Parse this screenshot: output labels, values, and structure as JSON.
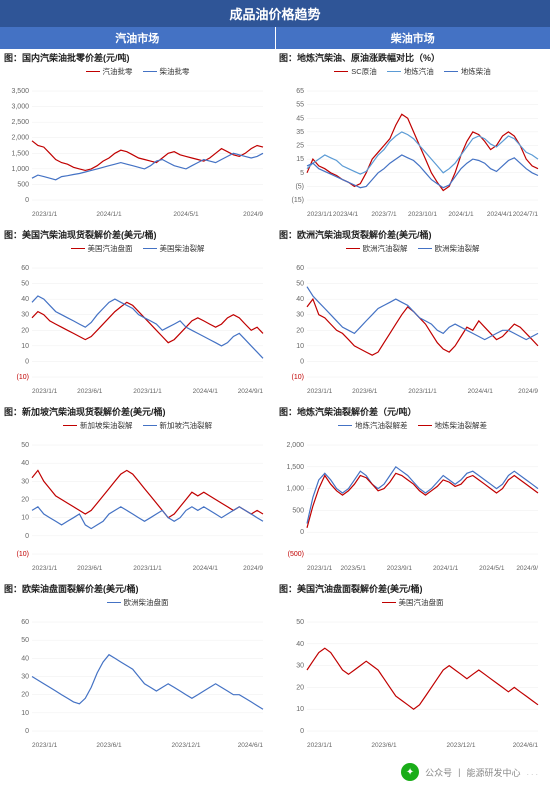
{
  "main_title": "成品油价格趋势",
  "sub_headers": [
    "汽油市场",
    "柴油市场"
  ],
  "colors": {
    "red": "#c00000",
    "blue": "#4472c4",
    "lightblue": "#5b9bd5",
    "grid": "#eeeeee",
    "axis": "#cccccc",
    "bg": "#ffffff"
  },
  "footer": {
    "source_label": "公众号",
    "source_name": "能源研发中心",
    "sep": "|",
    "dots": "..."
  },
  "charts": [
    {
      "id": "c0",
      "title": "图：国内汽柴油批零价差(元/吨)",
      "ylim": [
        0,
        3500
      ],
      "ytick_step": 500,
      "x_labels": [
        "2023/1/1",
        "2024/1/1",
        "2024/5/1",
        "2024/9"
      ],
      "series": [
        {
          "name": "汽油批零",
          "color": "#c00000",
          "data": [
            1900,
            1750,
            1700,
            1500,
            1300,
            1200,
            1150,
            1050,
            1000,
            950,
            1000,
            1100,
            1250,
            1350,
            1500,
            1600,
            1550,
            1450,
            1350,
            1300,
            1250,
            1200,
            1350,
            1500,
            1550,
            1450,
            1400,
            1350,
            1300,
            1250,
            1350,
            1500,
            1650,
            1550,
            1450,
            1400,
            1500,
            1650,
            1750,
            1700
          ]
        },
        {
          "name": "柴油批零",
          "color": "#4472c4",
          "data": [
            700,
            800,
            750,
            700,
            650,
            750,
            780,
            820,
            850,
            900,
            950,
            1000,
            1050,
            1100,
            1150,
            1200,
            1150,
            1100,
            1050,
            1000,
            1100,
            1250,
            1300,
            1200,
            1100,
            1050,
            1000,
            1100,
            1200,
            1300,
            1250,
            1200,
            1300,
            1400,
            1500,
            1450,
            1400,
            1350,
            1400,
            1500
          ]
        }
      ]
    },
    {
      "id": "c1",
      "title": "图：地炼汽柴油、原油涨跌幅对比（%）",
      "ylim": [
        -15,
        65
      ],
      "ytick_step": 10,
      "x_labels": [
        "2023/1/1",
        "2023/4/1",
        "2023/7/1",
        "2023/10/1",
        "2024/1/1",
        "2024/4/1",
        "2024/7/1"
      ],
      "series": [
        {
          "name": "SC原油",
          "color": "#c00000",
          "data": [
            5,
            15,
            10,
            8,
            5,
            3,
            0,
            -2,
            -5,
            -3,
            5,
            15,
            20,
            25,
            30,
            40,
            48,
            45,
            35,
            25,
            15,
            5,
            -2,
            -8,
            -5,
            5,
            18,
            28,
            35,
            33,
            28,
            22,
            25,
            32,
            35,
            32,
            25,
            15,
            10,
            8
          ]
        },
        {
          "name": "地炼汽油",
          "color": "#5b9bd5",
          "data": [
            8,
            12,
            15,
            18,
            16,
            14,
            10,
            8,
            6,
            4,
            6,
            12,
            18,
            22,
            28,
            32,
            35,
            33,
            30,
            25,
            20,
            15,
            10,
            5,
            8,
            12,
            18,
            24,
            30,
            32,
            30,
            26,
            24,
            28,
            32,
            30,
            25,
            20,
            18,
            15
          ]
        },
        {
          "name": "地炼柴油",
          "color": "#4472c4",
          "data": [
            10,
            12,
            8,
            6,
            4,
            2,
            0,
            -2,
            -4,
            -6,
            -5,
            0,
            5,
            8,
            12,
            15,
            18,
            16,
            14,
            10,
            5,
            0,
            -3,
            -6,
            -4,
            2,
            8,
            12,
            15,
            14,
            12,
            8,
            6,
            10,
            14,
            16,
            12,
            8,
            5,
            3
          ]
        }
      ]
    },
    {
      "id": "c2",
      "title": "图：美国汽柴油现货裂解价差(美元/桶)",
      "ylim": [
        -10,
        60
      ],
      "ytick_step": 10,
      "neg_tick_color": "#c00000",
      "x_labels": [
        "2023/1/1",
        "2023/6/1",
        "2023/11/1",
        "2024/4/1",
        "2024/9/1"
      ],
      "series": [
        {
          "name": "美国汽油盘面",
          "color": "#c00000",
          "data": [
            28,
            32,
            30,
            26,
            24,
            22,
            20,
            18,
            16,
            14,
            16,
            20,
            24,
            28,
            32,
            35,
            38,
            36,
            32,
            28,
            24,
            20,
            16,
            12,
            14,
            18,
            22,
            26,
            28,
            26,
            24,
            22,
            24,
            28,
            30,
            28,
            24,
            20,
            22,
            18
          ]
        },
        {
          "name": "美国柴油裂解",
          "color": "#4472c4",
          "data": [
            38,
            42,
            40,
            36,
            32,
            30,
            28,
            26,
            24,
            22,
            25,
            30,
            34,
            38,
            40,
            38,
            36,
            34,
            30,
            28,
            26,
            24,
            20,
            22,
            24,
            26,
            22,
            20,
            18,
            16,
            14,
            12,
            10,
            12,
            16,
            18,
            14,
            10,
            6,
            2
          ]
        }
      ]
    },
    {
      "id": "c3",
      "title": "图：欧洲汽柴油现货裂解价差(美元/桶)",
      "ylim": [
        -10,
        60
      ],
      "ytick_step": 10,
      "neg_tick_color": "#c00000",
      "x_labels": [
        "2023/1/1",
        "2023/6/1",
        "2023/11/1",
        "2024/4/1",
        "2024/9"
      ],
      "series": [
        {
          "name": "欧洲汽油裂解",
          "color": "#c00000",
          "data": [
            35,
            40,
            30,
            28,
            24,
            20,
            18,
            14,
            10,
            8,
            6,
            4,
            6,
            12,
            18,
            24,
            30,
            35,
            32,
            28,
            24,
            18,
            12,
            8,
            6,
            10,
            16,
            22,
            20,
            26,
            22,
            18,
            14,
            16,
            20,
            24,
            22,
            18,
            14,
            10
          ]
        },
        {
          "name": "欧洲柴油裂解",
          "color": "#4472c4",
          "data": [
            48,
            42,
            38,
            34,
            30,
            26,
            22,
            20,
            18,
            22,
            26,
            30,
            34,
            36,
            38,
            40,
            38,
            36,
            32,
            28,
            26,
            24,
            20,
            18,
            22,
            24,
            22,
            20,
            18,
            16,
            14,
            16,
            18,
            20,
            20,
            18,
            16,
            14,
            16,
            18
          ]
        }
      ]
    },
    {
      "id": "c4",
      "title": "图：新加坡汽柴油现货裂解价差(美元/桶)",
      "ylim": [
        -10,
        50
      ],
      "ytick_step": 10,
      "neg_tick_color": "#c00000",
      "x_labels": [
        "2023/1/1",
        "2023/6/1",
        "2023/11/1",
        "2024/4/1",
        "2024/9"
      ],
      "series": [
        {
          "name": "新加坡柴油裂解",
          "color": "#c00000",
          "data": [
            32,
            36,
            30,
            26,
            22,
            20,
            18,
            16,
            14,
            12,
            14,
            18,
            22,
            26,
            30,
            34,
            36,
            34,
            30,
            26,
            22,
            18,
            14,
            10,
            12,
            16,
            20,
            24,
            22,
            24,
            22,
            20,
            18,
            16,
            14,
            16,
            14,
            12,
            14,
            12
          ]
        },
        {
          "name": "新加坡汽油裂解",
          "color": "#4472c4",
          "data": [
            14,
            16,
            12,
            10,
            8,
            6,
            8,
            10,
            12,
            6,
            4,
            6,
            8,
            12,
            14,
            16,
            14,
            12,
            10,
            8,
            10,
            12,
            14,
            10,
            8,
            10,
            14,
            16,
            14,
            16,
            14,
            12,
            10,
            12,
            14,
            16,
            14,
            12,
            10,
            8
          ]
        }
      ]
    },
    {
      "id": "c5",
      "title": "图：地炼汽柴油裂解价差（元/吨）",
      "ylim": [
        -500,
        2000
      ],
      "ytick_step": 500,
      "neg_tick_color": "#c00000",
      "x_labels": [
        "2023/1/1",
        "2023/5/1",
        "2023/9/1",
        "2024/1/1",
        "2024/5/1",
        "2024/9/"
      ],
      "series": [
        {
          "name": "地炼汽油裂解差",
          "color": "#4472c4",
          "data": [
            200,
            800,
            1200,
            1350,
            1200,
            1000,
            900,
            1000,
            1200,
            1400,
            1300,
            1100,
            1000,
            1100,
            1300,
            1500,
            1400,
            1300,
            1150,
            1000,
            900,
            1000,
            1150,
            1300,
            1200,
            1100,
            1200,
            1350,
            1400,
            1300,
            1200,
            1100,
            1000,
            1100,
            1300,
            1400,
            1300,
            1200,
            1100,
            1000
          ]
        },
        {
          "name": "地炼柴油裂解差",
          "color": "#c00000",
          "data": [
            100,
            600,
            1000,
            1300,
            1100,
            950,
            850,
            950,
            1100,
            1300,
            1250,
            1100,
            950,
            1000,
            1150,
            1350,
            1300,
            1200,
            1100,
            950,
            850,
            950,
            1050,
            1200,
            1150,
            1050,
            1100,
            1250,
            1300,
            1200,
            1100,
            1000,
            900,
            1000,
            1200,
            1300,
            1200,
            1100,
            1000,
            900
          ]
        }
      ]
    },
    {
      "id": "c6",
      "title": "图：欧柴油盘面裂解价差(美元/桶)",
      "ylim": [
        0,
        60
      ],
      "ytick_step": 10,
      "x_labels": [
        "2023/1/1",
        "2023/6/1",
        "2023/12/1",
        "2024/6/1"
      ],
      "series": [
        {
          "name": "欧洲柴油盘面",
          "color": "#4472c4",
          "data": [
            30,
            28,
            26,
            24,
            22,
            20,
            18,
            16,
            15,
            18,
            24,
            32,
            38,
            42,
            40,
            38,
            36,
            34,
            30,
            26,
            24,
            22,
            24,
            26,
            24,
            22,
            20,
            18,
            20,
            22,
            24,
            26,
            24,
            22,
            20,
            20,
            18,
            16,
            14,
            12
          ]
        }
      ]
    },
    {
      "id": "c7",
      "title": "图：美国汽油盘面裂解价差(美元/桶)",
      "ylim": [
        0,
        50
      ],
      "ytick_step": 10,
      "x_labels": [
        "2023/1/1",
        "2023/6/1",
        "2023/12/1",
        "2024/6/1"
      ],
      "series": [
        {
          "name": "美国汽油盘面",
          "color": "#c00000",
          "data": [
            28,
            32,
            36,
            38,
            36,
            32,
            28,
            26,
            28,
            30,
            32,
            30,
            28,
            24,
            20,
            16,
            14,
            12,
            10,
            12,
            16,
            20,
            24,
            28,
            30,
            28,
            26,
            24,
            26,
            28,
            26,
            24,
            22,
            20,
            18,
            20,
            18,
            16,
            14,
            12
          ]
        }
      ]
    }
  ]
}
